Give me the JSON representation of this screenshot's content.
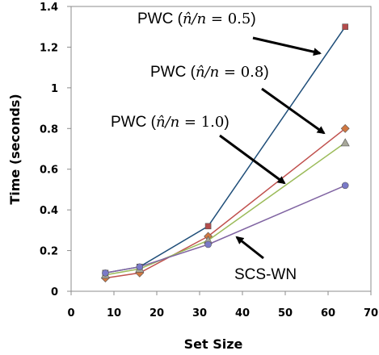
{
  "chart_data": {
    "type": "line",
    "xlabel": "Set Size",
    "ylabel": "Time (seconds)",
    "xlim": [
      0,
      70
    ],
    "ylim": [
      0,
      1.4
    ],
    "xticks": [
      "0",
      "10",
      "20",
      "30",
      "40",
      "50",
      "60",
      "70"
    ],
    "yticks": [
      "0",
      "0.2",
      "0.4",
      "0.6",
      "0.8",
      "1",
      "1.2",
      "1.4"
    ],
    "grid": false,
    "x": [
      8,
      16,
      32,
      64
    ],
    "series": [
      {
        "values": [
          0.09,
          0.12,
          0.32,
          1.3
        ],
        "color": "#1f4e79",
        "marker": "square",
        "marker_fill": "#b44c4c"
      },
      {
        "values": [
          0.065,
          0.09,
          0.27,
          0.8
        ],
        "color": "#c0504d",
        "marker": "diamond",
        "marker_fill": "#d07842"
      },
      {
        "values": [
          0.08,
          0.11,
          0.25,
          0.73
        ],
        "color": "#9bbb59",
        "marker": "triangle",
        "marker_fill": "#a8a89a"
      },
      {
        "values": [
          0.09,
          0.12,
          0.23,
          0.52
        ],
        "color": "#8064a2",
        "marker": "circle",
        "marker_fill": "#7a7ac8"
      }
    ],
    "annotations": [
      {
        "prefix": "PWC (",
        "math_var": "n̂/n",
        "math_rest": " = 0.5",
        "suffix": ")"
      },
      {
        "prefix": "PWC (",
        "math_var": "n̂/n",
        "math_rest": " = 0.8",
        "suffix": ")"
      },
      {
        "prefix": "PWC (",
        "math_var": "n̂/n",
        "math_rest": " = 1.0",
        "suffix": ")"
      },
      {
        "text": "SCS-WN"
      }
    ]
  }
}
